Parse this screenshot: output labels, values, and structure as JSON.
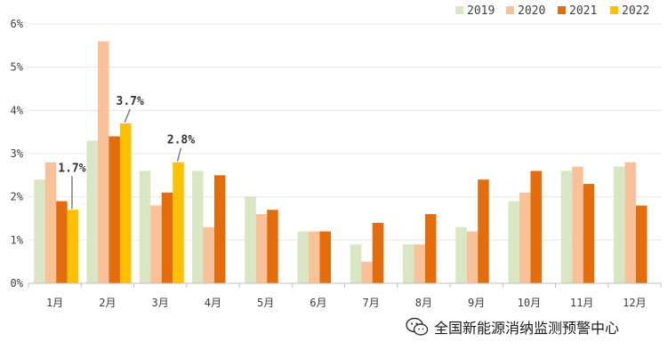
{
  "chart_data": {
    "type": "bar",
    "categories": [
      "1月",
      "2月",
      "3月",
      "4月",
      "5月",
      "6月",
      "7月",
      "8月",
      "9月",
      "10月",
      "11月",
      "12月"
    ],
    "series": [
      {
        "name": "2019",
        "color": "#d9e6c4",
        "values": [
          2.4,
          3.3,
          2.6,
          2.6,
          2.0,
          1.2,
          0.9,
          0.9,
          1.3,
          1.9,
          2.6,
          2.7
        ]
      },
      {
        "name": "2020",
        "color": "#f8c197",
        "values": [
          2.8,
          5.6,
          1.8,
          1.3,
          1.6,
          1.2,
          0.5,
          0.9,
          1.2,
          2.1,
          2.7,
          2.8
        ]
      },
      {
        "name": "2021",
        "color": "#e46c0a",
        "values": [
          1.9,
          3.4,
          2.1,
          2.5,
          1.7,
          1.2,
          1.4,
          1.6,
          2.4,
          2.6,
          2.3,
          1.8
        ]
      },
      {
        "name": "2022",
        "color": "#ffc000",
        "values": [
          1.7,
          3.7,
          2.8,
          null,
          null,
          null,
          null,
          null,
          null,
          null,
          null,
          null
        ]
      }
    ],
    "ylim": [
      0,
      6
    ],
    "yticks": [
      "0%",
      "1%",
      "2%",
      "3%",
      "4%",
      "5%",
      "6%"
    ],
    "grid": true,
    "legend": "top-right",
    "annotations": [
      {
        "category": "1月",
        "series": "2022",
        "value": 1.7,
        "label": "1.7%"
      },
      {
        "category": "2月",
        "series": "2022",
        "value": 3.7,
        "label": "3.7%"
      },
      {
        "category": "3月",
        "series": "2022",
        "value": 2.8,
        "label": "2.8%"
      }
    ]
  },
  "watermark": {
    "text": "全国新能源消纳监测预警中心",
    "icon": "wechat-icon"
  }
}
